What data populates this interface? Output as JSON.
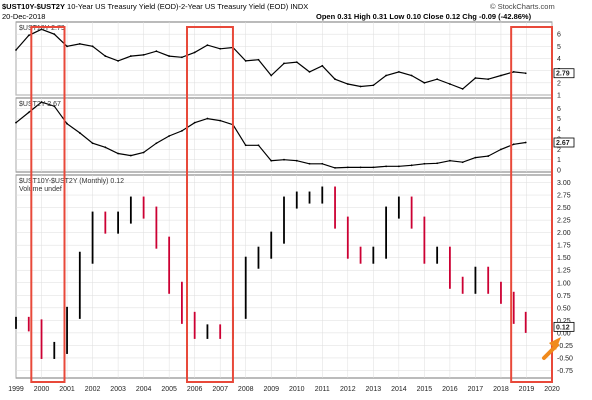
{
  "header": {
    "symbol": "$UST10Y-$UST2Y",
    "title": "10-Year US Treasury Yield (EOD)-2-Year US Treasury Yield (EOD)",
    "exchange": "INDX",
    "date": "20-Dec-2018",
    "ohlc": "Open 0.31  High 0.31  Low 0.10  Close 0.12  Chg -0.09 (-42.86%)",
    "credit": "© StockCharts.com"
  },
  "colors": {
    "up": "#000000",
    "down": "#cc0033",
    "line": "#000000",
    "highlight_box": "#e8493a",
    "arrow": "#f08a1c",
    "grid": "#dddddd"
  },
  "chart_data": [
    {
      "type": "line",
      "title": "$UST10Y 2.79",
      "last_value_label": "2.79",
      "ylim": [
        1,
        7
      ],
      "yticks": [
        1,
        2,
        3,
        4,
        5,
        6
      ],
      "x": [
        1999.0,
        1999.5,
        2000.0,
        2000.5,
        2001.0,
        2001.5,
        2002.0,
        2002.5,
        2003.0,
        2003.5,
        2004.0,
        2004.5,
        2005.0,
        2005.5,
        2006.0,
        2006.5,
        2007.0,
        2007.5,
        2008.0,
        2008.5,
        2009.0,
        2009.5,
        2010.0,
        2010.5,
        2011.0,
        2011.5,
        2012.0,
        2012.5,
        2013.0,
        2013.5,
        2014.0,
        2014.5,
        2015.0,
        2015.5,
        2016.0,
        2016.5,
        2017.0,
        2017.5,
        2018.0,
        2018.5,
        2018.97
      ],
      "values": [
        4.7,
        5.9,
        6.4,
        6.0,
        5.0,
        5.2,
        5.0,
        4.2,
        3.8,
        4.2,
        4.3,
        4.6,
        4.2,
        4.1,
        4.5,
        5.1,
        4.8,
        4.9,
        3.8,
        3.9,
        2.6,
        3.6,
        3.7,
        2.9,
        3.4,
        2.3,
        1.9,
        1.7,
        1.8,
        2.6,
        2.9,
        2.6,
        2.0,
        2.3,
        1.9,
        1.5,
        2.4,
        2.3,
        2.6,
        2.9,
        2.79
      ]
    },
    {
      "type": "line",
      "title": "$UST2Y 2.67",
      "last_value_label": "2.67",
      "ylim": [
        -0.2,
        7
      ],
      "yticks": [
        0,
        1,
        2,
        3,
        4,
        5,
        6
      ],
      "x": [
        1999.0,
        1999.5,
        2000.0,
        2000.5,
        2001.0,
        2001.5,
        2002.0,
        2002.5,
        2003.0,
        2003.5,
        2004.0,
        2004.5,
        2005.0,
        2005.5,
        2006.0,
        2006.5,
        2007.0,
        2007.5,
        2008.0,
        2008.5,
        2009.0,
        2009.5,
        2010.0,
        2010.5,
        2011.0,
        2011.5,
        2012.0,
        2012.5,
        2013.0,
        2013.5,
        2014.0,
        2014.5,
        2015.0,
        2015.5,
        2016.0,
        2016.5,
        2017.0,
        2017.5,
        2018.0,
        2018.5,
        2018.97
      ],
      "values": [
        4.6,
        5.6,
        6.6,
        6.2,
        4.5,
        3.6,
        2.6,
        2.2,
        1.6,
        1.4,
        1.7,
        2.6,
        3.3,
        3.8,
        4.6,
        5.0,
        4.8,
        4.4,
        2.4,
        2.4,
        0.9,
        1.0,
        0.9,
        0.6,
        0.6,
        0.2,
        0.25,
        0.25,
        0.25,
        0.35,
        0.35,
        0.45,
        0.6,
        0.65,
        0.9,
        0.75,
        1.2,
        1.35,
        2.0,
        2.5,
        2.67
      ]
    },
    {
      "type": "bar",
      "title": "$UST10Y-$UST2Y (Monthly) 0.12",
      "subtitle": "Volume undef",
      "last_value_label": "0.12",
      "ylim": [
        -0.9,
        3.15
      ],
      "yticks": [
        -0.75,
        -0.5,
        -0.25,
        0.0,
        0.25,
        0.5,
        0.75,
        1.0,
        1.25,
        1.5,
        1.75,
        2.0,
        2.25,
        2.5,
        2.75,
        3.0
      ],
      "xticks": [
        "1999",
        "2000",
        "2001",
        "2002",
        "2003",
        "2004",
        "2005",
        "2006",
        "2007",
        "2008",
        "2009",
        "2010",
        "2011",
        "2012",
        "2013",
        "2014",
        "2015",
        "2016",
        "2017",
        "2018",
        "2019",
        "2020"
      ],
      "x": [
        1999.0,
        1999.5,
        2000.0,
        2000.5,
        2001.0,
        2001.5,
        2002.0,
        2002.5,
        2003.0,
        2003.5,
        2004.0,
        2004.5,
        2005.0,
        2005.5,
        2006.0,
        2006.5,
        2007.0,
        2007.5,
        2008.0,
        2008.5,
        2009.0,
        2009.5,
        2010.0,
        2010.5,
        2011.0,
        2011.5,
        2012.0,
        2012.5,
        2013.0,
        2013.5,
        2014.0,
        2014.5,
        2015.0,
        2015.5,
        2016.0,
        2016.5,
        2017.0,
        2017.5,
        2018.0,
        2018.5,
        2018.97
      ],
      "values": [
        0.2,
        0.15,
        -0.4,
        -0.3,
        0.4,
        1.5,
        2.3,
        2.1,
        2.3,
        2.6,
        2.4,
        1.8,
        0.9,
        0.3,
        0.0,
        0.05,
        0.0,
        0.4,
        1.4,
        1.6,
        1.9,
        2.6,
        2.7,
        2.7,
        2.8,
        2.2,
        1.6,
        1.5,
        1.6,
        2.4,
        2.6,
        2.2,
        1.5,
        1.6,
        1.0,
        0.9,
        1.2,
        0.9,
        0.7,
        0.3,
        0.12
      ]
    }
  ]
}
